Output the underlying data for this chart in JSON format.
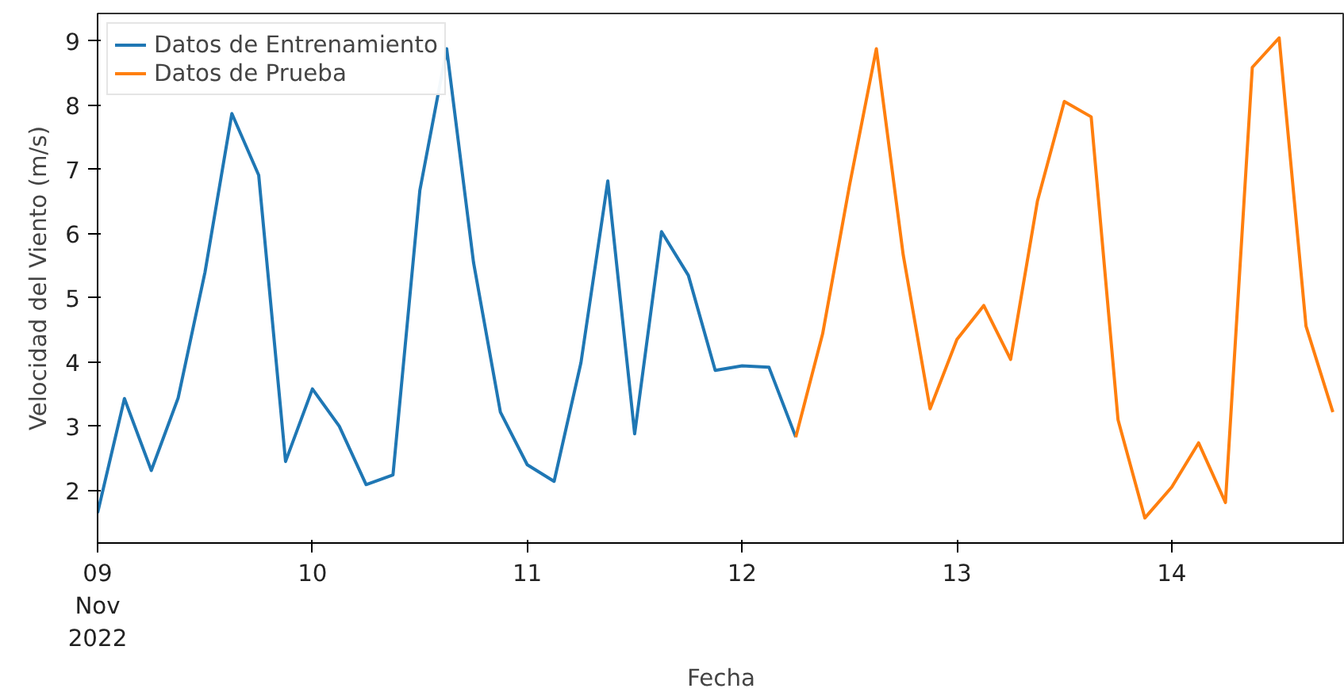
{
  "chart_data": {
    "type": "line",
    "xlabel": "Fecha",
    "ylabel": "Velocidad del Viento (m/s)",
    "xlim": [
      "2022-11-09T00:00",
      "2022-11-14T19:20"
    ],
    "ylim": [
      1.18,
      9.43
    ],
    "yticks": [
      2,
      3,
      4,
      5,
      6,
      7,
      8,
      9
    ],
    "xticks": [
      {
        "value": "2022-11-09",
        "label": "09\nNov\n2022"
      },
      {
        "value": "2022-11-10",
        "label": "10"
      },
      {
        "value": "2022-11-11",
        "label": "11"
      },
      {
        "value": "2022-11-12",
        "label": "12"
      },
      {
        "value": "2022-11-13",
        "label": "13"
      },
      {
        "value": "2022-11-14",
        "label": "14"
      }
    ],
    "grid": false,
    "legend": "top left",
    "marker": "none",
    "line_style": "solid",
    "series": [
      {
        "name": "Datos de Entrenamiento",
        "color": "#1f77b4",
        "x": [
          "2022-11-09T00:00",
          "2022-11-09T03:00",
          "2022-11-09T06:00",
          "2022-11-09T09:00",
          "2022-11-09T12:00",
          "2022-11-09T15:00",
          "2022-11-09T18:00",
          "2022-11-09T21:00",
          "2022-11-10T00:00",
          "2022-11-10T03:00",
          "2022-11-10T06:00",
          "2022-11-10T09:00",
          "2022-11-10T12:00",
          "2022-11-10T15:00",
          "2022-11-10T18:00",
          "2022-11-10T21:00",
          "2022-11-11T00:00",
          "2022-11-11T03:00",
          "2022-11-11T06:00",
          "2022-11-11T09:00",
          "2022-11-11T12:00",
          "2022-11-11T15:00",
          "2022-11-11T18:00",
          "2022-11-11T21:00",
          "2022-11-12T00:00",
          "2022-11-12T03:00",
          "2022-11-12T06:00"
        ],
        "values": [
          1.65,
          3.43,
          2.31,
          3.44,
          5.4,
          7.87,
          6.91,
          2.45,
          3.58,
          3.0,
          2.09,
          2.24,
          6.67,
          8.88,
          5.55,
          3.22,
          2.4,
          2.14,
          3.99,
          6.82,
          2.88,
          6.03,
          5.35,
          3.87,
          3.94,
          3.92,
          2.83
        ]
      },
      {
        "name": "Datos de Prueba",
        "color": "#ff7f0e",
        "x": [
          "2022-11-12T06:00",
          "2022-11-12T09:00",
          "2022-11-12T12:00",
          "2022-11-12T15:00",
          "2022-11-12T18:00",
          "2022-11-12T21:00",
          "2022-11-13T00:00",
          "2022-11-13T03:00",
          "2022-11-13T06:00",
          "2022-11-13T09:00",
          "2022-11-13T12:00",
          "2022-11-13T15:00",
          "2022-11-13T18:00",
          "2022-11-13T21:00",
          "2022-11-14T00:00",
          "2022-11-14T03:00",
          "2022-11-14T06:00",
          "2022-11-14T09:00",
          "2022-11-14T12:00",
          "2022-11-14T15:00",
          "2022-11-14T18:00"
        ],
        "values": [
          2.83,
          4.44,
          6.75,
          8.88,
          5.67,
          3.27,
          4.35,
          4.88,
          4.04,
          6.51,
          8.06,
          7.82,
          3.1,
          1.57,
          2.05,
          2.74,
          1.81,
          8.59,
          9.05,
          4.56,
          3.22
        ]
      }
    ]
  }
}
